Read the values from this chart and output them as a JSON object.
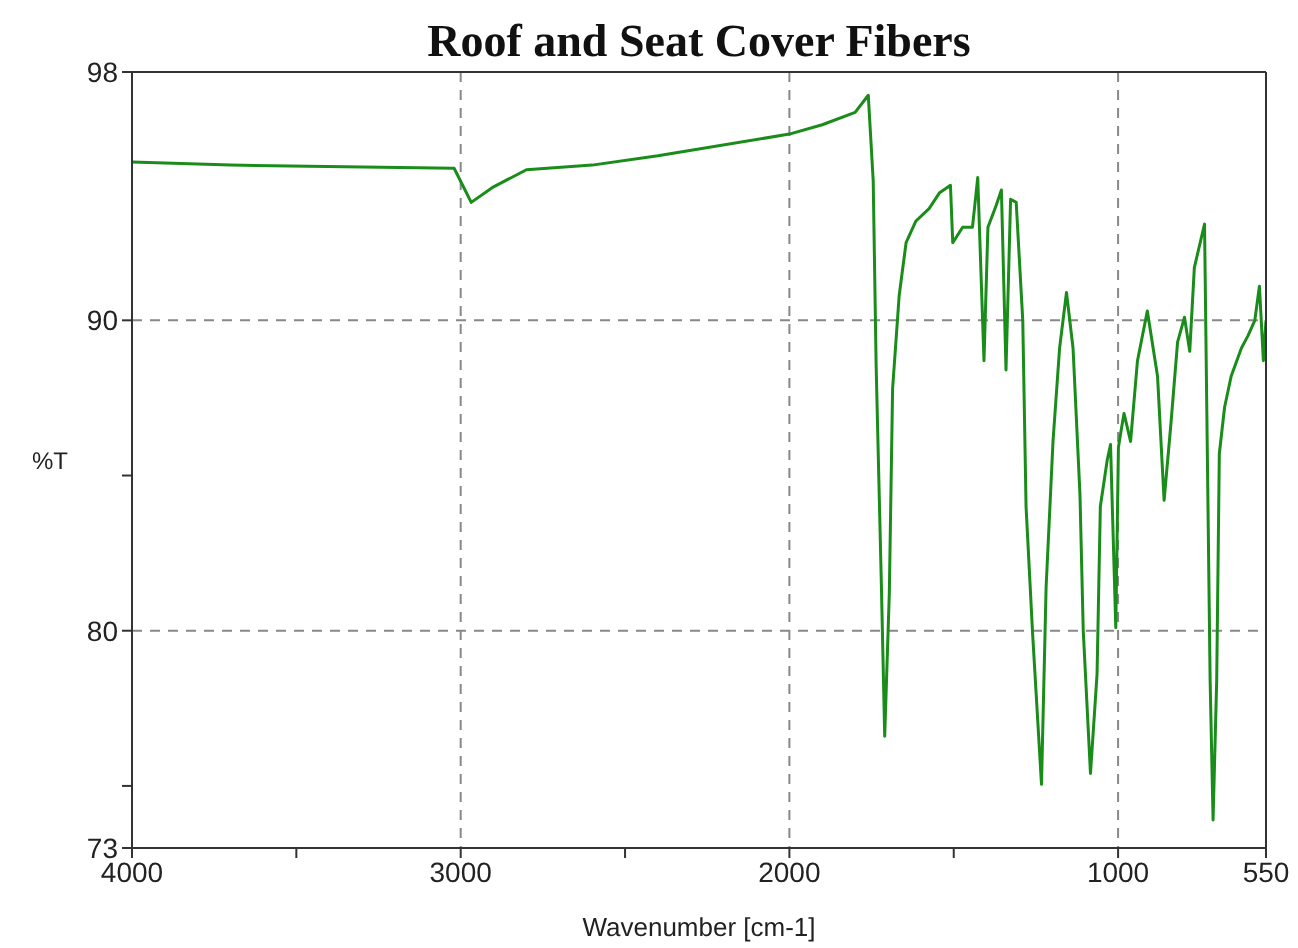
{
  "chart_data": {
    "type": "line",
    "title": "Roof and Seat Cover Fibers",
    "xlabel": "Wavenumber [cm-1]",
    "ylabel": "%T",
    "xlim": [
      4000,
      550
    ],
    "ylim": [
      73,
      98
    ],
    "xticks": [
      4000,
      {
        "value": 3500,
        "label": null
      },
      3000,
      {
        "value": 2500,
        "label": null
      },
      2000,
      {
        "value": 1500,
        "label": null
      },
      1000,
      550
    ],
    "yticks": [
      73,
      {
        "value": 75,
        "label": null
      },
      80,
      {
        "value": 85,
        "label": null
      },
      90,
      98
    ],
    "grid": true,
    "line_style": "solid",
    "marker": "none",
    "series": [
      {
        "color": "#1a8c1a",
        "x": [
          4000,
          3700,
          3020,
          2968,
          2900,
          2800,
          2600,
          2400,
          2000,
          1900,
          1800,
          1760,
          1745,
          1736,
          1720,
          1710,
          1696,
          1686,
          1666,
          1645,
          1615,
          1575,
          1544,
          1510,
          1503,
          1473,
          1443,
          1427,
          1408,
          1396,
          1371,
          1355,
          1341,
          1327,
          1310,
          1290,
          1280,
          1260,
          1233,
          1219,
          1198,
          1178,
          1157,
          1137,
          1116,
          1106,
          1084,
          1064,
          1054,
          1033,
          1023,
          1007,
          999,
          990,
          982,
          962,
          941,
          911,
          880,
          860,
          839,
          819,
          798,
          782,
          768,
          737,
          720,
          711,
          700,
          692,
          676,
          656,
          625,
          605,
          584,
          570,
          558,
          550
        ],
        "values": [
          95.1,
          95.0,
          94.9,
          93.8,
          94.3,
          94.85,
          95.0,
          95.3,
          96.0,
          96.3,
          96.7,
          97.25,
          94.5,
          88.5,
          81.4,
          76.6,
          81.2,
          87.8,
          90.8,
          92.5,
          93.2,
          93.6,
          94.1,
          94.35,
          92.5,
          93.0,
          93.0,
          94.6,
          88.7,
          93.0,
          93.7,
          94.2,
          88.4,
          93.9,
          93.8,
          90.0,
          84.0,
          79.9,
          75.05,
          81.4,
          86.1,
          89.1,
          90.9,
          89.1,
          84.4,
          80.0,
          75.4,
          78.6,
          84.0,
          85.5,
          86.0,
          80.1,
          85.9,
          86.5,
          87.0,
          86.1,
          88.7,
          90.3,
          88.2,
          84.2,
          86.7,
          89.3,
          90.1,
          89.0,
          91.7,
          93.1,
          78.4,
          73.9,
          78.4,
          85.7,
          87.2,
          88.2,
          89.1,
          89.5,
          90.0,
          91.1,
          88.7,
          90.0
        ]
      }
    ]
  }
}
